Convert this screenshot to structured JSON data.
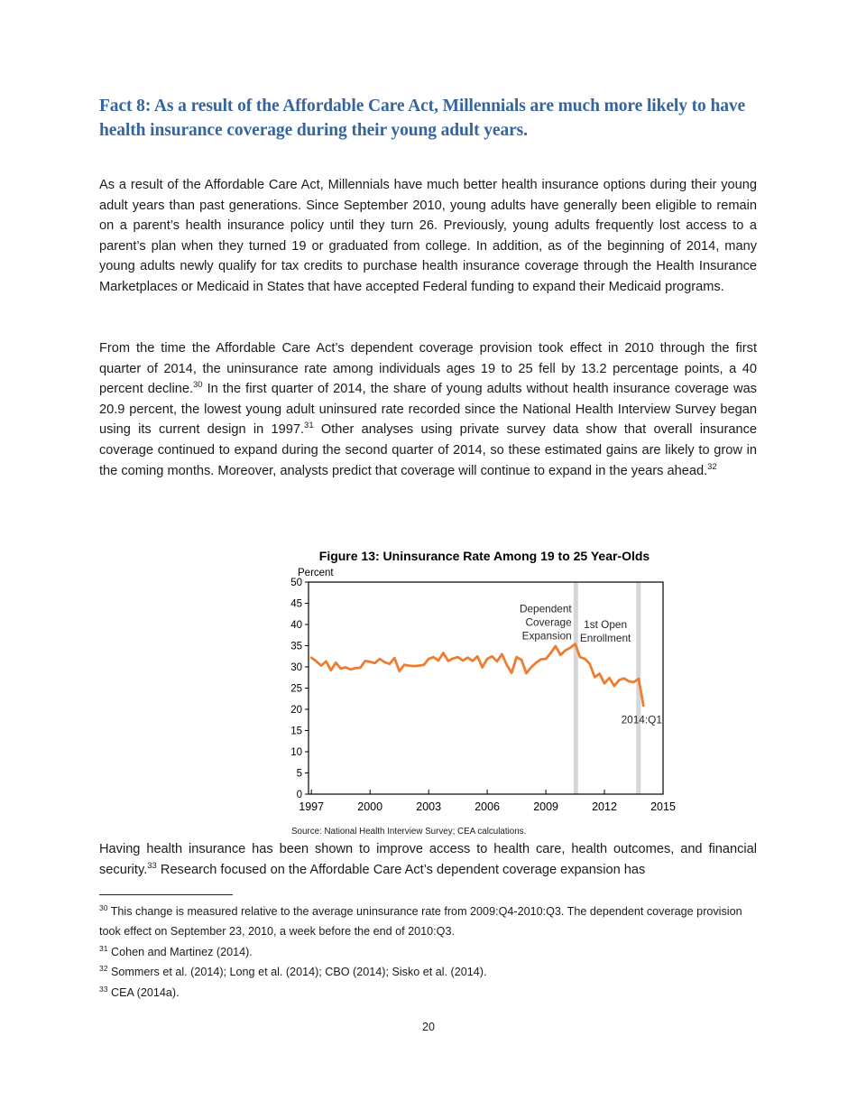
{
  "page_number": "20",
  "heading": "Fact 8: As a result of the Affordable Care Act, Millennials are much more likely to have health insurance coverage during their young adult years.",
  "body": {
    "p1": "As a result of the Affordable Care Act, Millennials have much better health insurance options during their young adult years than past generations. Since September 2010, young adults have generally been eligible to remain on a parent’s health insurance policy until they turn 26. Previously, young adults frequently lost access to a parent’s plan when they turned 19 or graduated from college. In addition, as of the beginning of 2014, many young adults newly qualify for tax credits to purchase health insurance coverage through the Health Insurance Marketplaces or Medicaid in States that have accepted Federal funding to expand their Medicaid programs.",
    "p2_text1": "From the time the Affordable Care Act’s dependent coverage provision took effect in 2010 through the first quarter of 2014, the uninsurance rate among individuals ages 19 to 25 fell by 13.2 percentage points, a 40 percent decline.",
    "p2_sup1": "30",
    "p2_text2": " In the first quarter of 2014, the share of young adults without health insurance coverage was 20.9 percent, the lowest young adult uninsured rate recorded since the National Health Interview Survey began using its current design in 1997.",
    "p2_sup2": "31",
    "p2_text3": " Other analyses using private survey data show that overall insurance coverage continued to expand during the second quarter of 2014, so these estimated gains are likely to grow in the coming months. Moreover, analysts predict that coverage will continue to expand in the years ahead.",
    "p2_sup3": "32",
    "p3_text1": "Having health insurance has been shown to improve access to health care, health outcomes, and financial security.",
    "p3_sup1": "33",
    "p3_text2": " Research focused on the Affordable Care Act’s dependent coverage expansion has"
  },
  "footnotes": [
    {
      "num": "30",
      "text": " This change is measured relative to the average uninsurance rate from 2009:Q4-2010:Q3. The dependent coverage provision took effect on September 23, 2010, a week before the end of 2010:Q3."
    },
    {
      "num": "31",
      "text": " Cohen and Martinez (2014)."
    },
    {
      "num": "32",
      "text": " Sommers et al. (2014); Long et al. (2014); CBO (2014); Sisko et al. (2014)."
    },
    {
      "num": "33",
      "text": " CEA (2014a)."
    }
  ],
  "chart_data": {
    "type": "line",
    "title": "Figure 13: Uninsurance Rate Among 19 to 25 Year-Olds",
    "unit_label": "Percent",
    "source": "Source: National Health Interview Survey; CEA calculations.",
    "xlim": [
      1996.85,
      2015.0
    ],
    "ylim": [
      0,
      50
    ],
    "xticks": [
      1997,
      2000,
      2003,
      2006,
      2009,
      2012,
      2015
    ],
    "yticks": [
      0,
      5,
      10,
      15,
      20,
      25,
      30,
      35,
      40,
      45,
      50
    ],
    "grid": false,
    "legend": "none",
    "line_color": "#ED7D31",
    "band_color": "#D6D6D6",
    "series": [
      {
        "name": "Uninsurance rate among 19 to 25 year-olds (quarterly, percent)",
        "x_start": 1997.0,
        "x_step": 0.25,
        "values": [
          32.2,
          31.3,
          30.3,
          31.3,
          29.2,
          31.0,
          29.6,
          29.9,
          29.4,
          29.7,
          29.8,
          31.4,
          31.2,
          30.9,
          31.9,
          31.1,
          30.7,
          32.1,
          29.0,
          30.5,
          30.3,
          30.2,
          30.3,
          30.5,
          31.9,
          32.3,
          31.5,
          33.3,
          31.4,
          32.0,
          32.3,
          31.5,
          32.2,
          31.4,
          32.5,
          29.9,
          31.9,
          32.5,
          31.3,
          33.0,
          30.5,
          28.6,
          32.3,
          31.7,
          28.5,
          29.9,
          31.0,
          31.8,
          31.9,
          33.3,
          34.9,
          32.8,
          33.9,
          34.5,
          35.4,
          32.3,
          31.9,
          30.7,
          27.6,
          28.4,
          26.1,
          27.4,
          25.5,
          26.9,
          27.3,
          26.6,
          26.4,
          27.2,
          20.9
        ]
      }
    ],
    "bands": [
      {
        "x0": 2010.42,
        "x1": 2010.65
      },
      {
        "x0": 2013.63,
        "x1": 2013.86
      }
    ],
    "annotations": [
      {
        "lines": [
          "Dependent",
          "Coverage",
          "Expansion"
        ],
        "x": 2010.32,
        "y": 42.9,
        "anchor": "end"
      },
      {
        "lines": [
          "1st Open",
          "Enrollment"
        ],
        "x": 2012.05,
        "y": 39.1,
        "anchor": "middle"
      },
      {
        "lines": [
          "2014:Q1"
        ],
        "x": 2014.95,
        "y": 16.7,
        "anchor": "end"
      }
    ],
    "final_point_label": "2014:Q1",
    "final_point_value": 20.9
  }
}
